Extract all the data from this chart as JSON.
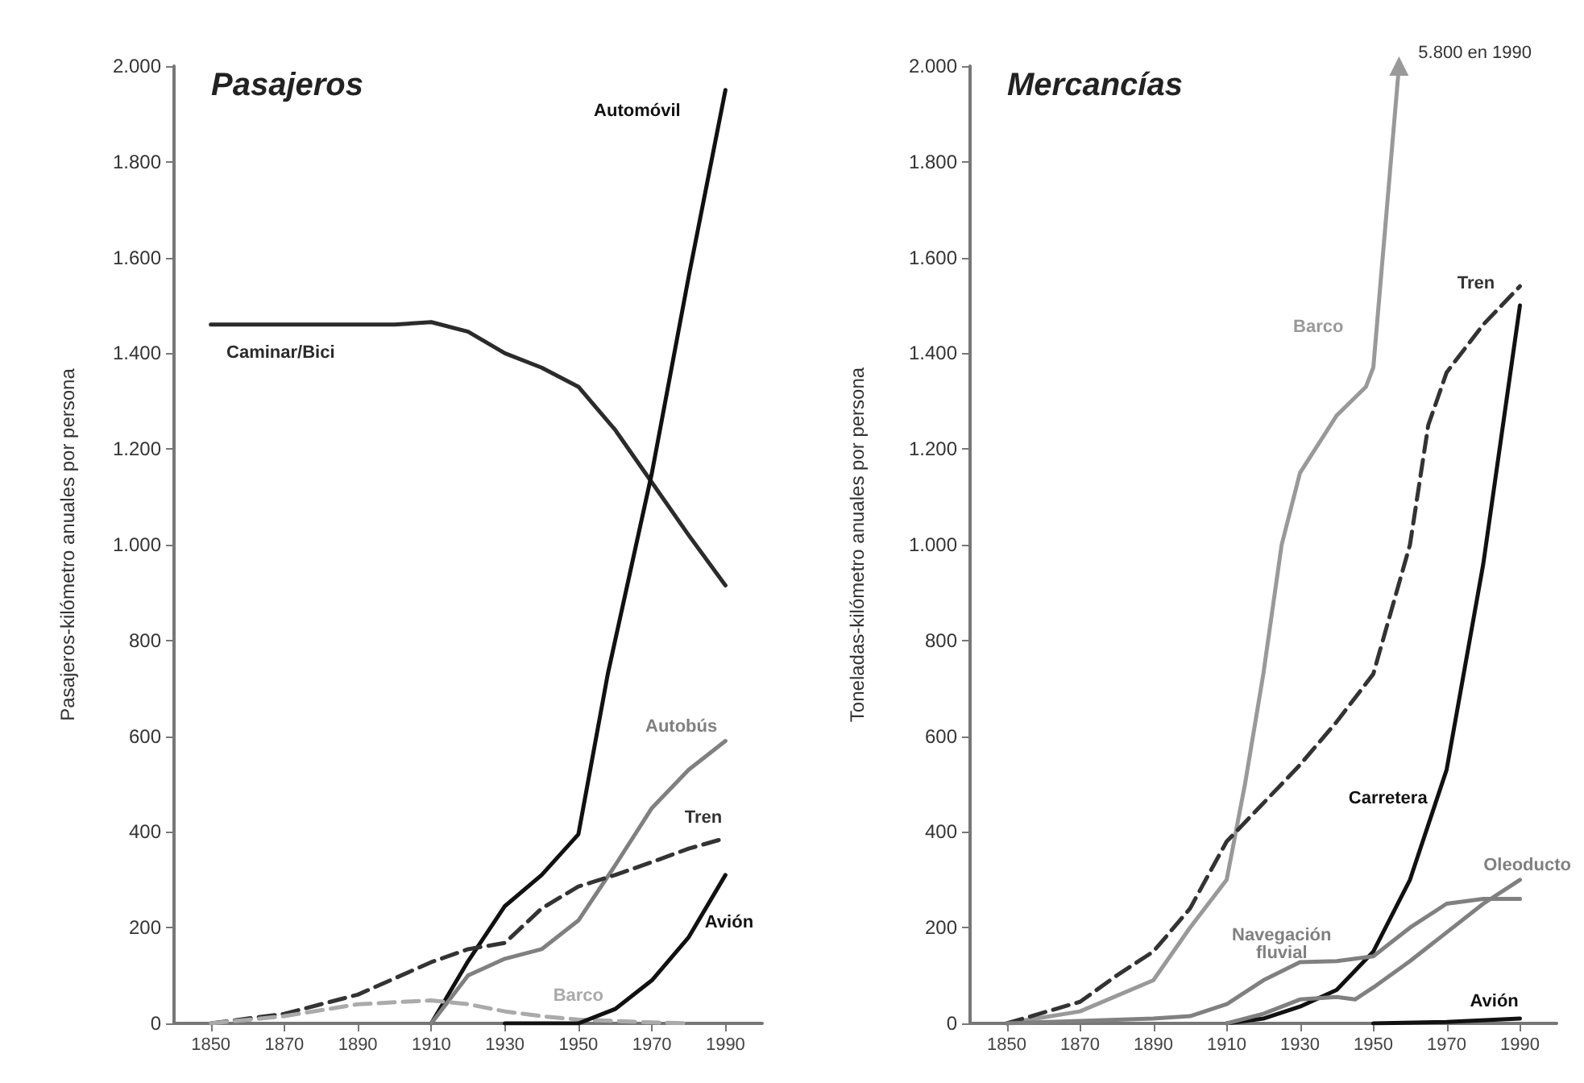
{
  "chart_data": [
    {
      "type": "line",
      "title": "Pasajeros",
      "ylabel": "Pasajeros-kilómetro anuales por persona",
      "xlim": [
        1840,
        2000
      ],
      "xticks": [
        1850,
        1870,
        1890,
        1910,
        1930,
        1950,
        1970,
        1990
      ],
      "ylim": [
        0,
        2000
      ],
      "yticks": [
        {
          "value": 0,
          "label": "0"
        },
        {
          "value": 200,
          "label": "200"
        },
        {
          "value": 400,
          "label": "400"
        },
        {
          "value": 600,
          "label": "600"
        },
        {
          "value": 800,
          "label": "800"
        },
        {
          "value": 1000,
          "label": "1.000"
        },
        {
          "value": 1200,
          "label": "1.200"
        },
        {
          "value": 1400,
          "label": "1.400"
        },
        {
          "value": 1600,
          "label": "1.600"
        },
        {
          "value": 1800,
          "label": "1.800"
        },
        {
          "value": 2000,
          "label": "2.000"
        }
      ],
      "grid": false,
      "marker": "none",
      "series": [
        {
          "name": "Caminar/Bici",
          "color": "#2b2b2b",
          "line_style": "solid",
          "x": [
            1850,
            1900,
            1910,
            1920,
            1930,
            1940,
            1950,
            1960,
            1970,
            1980,
            1990
          ],
          "values": [
            1460,
            1460,
            1465,
            1445,
            1400,
            1370,
            1330,
            1240,
            1130,
            1020,
            915
          ]
        },
        {
          "name": "Automóvil",
          "color": "#111111",
          "line_style": "solid",
          "x": [
            1910,
            1920,
            1930,
            1940,
            1950,
            1958,
            1970,
            1980,
            1990
          ],
          "values": [
            0,
            130,
            245,
            310,
            395,
            730,
            1150,
            1560,
            1950
          ]
        },
        {
          "name": "Autobús",
          "color": "#808080",
          "line_style": "solid",
          "x": [
            1910,
            1920,
            1930,
            1940,
            1950,
            1960,
            1970,
            1980,
            1990
          ],
          "values": [
            0,
            100,
            135,
            155,
            215,
            330,
            450,
            530,
            590
          ]
        },
        {
          "name": "Tren",
          "color": "#333333",
          "line_style": "dashed",
          "x": [
            1850,
            1870,
            1890,
            1910,
            1920,
            1930,
            1940,
            1950,
            1960,
            1970,
            1980,
            1990
          ],
          "values": [
            0,
            20,
            60,
            128,
            155,
            168,
            240,
            286,
            310,
            337,
            365,
            387
          ]
        },
        {
          "name": "Barco",
          "color": "#aaaaaa",
          "line_style": "dashed",
          "x": [
            1850,
            1870,
            1890,
            1910,
            1920,
            1930,
            1940,
            1950,
            1970,
            1980
          ],
          "values": [
            0,
            15,
            40,
            48,
            40,
            25,
            15,
            8,
            2,
            0
          ]
        },
        {
          "name": "Avión",
          "color": "#111111",
          "line_style": "solid",
          "x": [
            1930,
            1950,
            1960,
            1970,
            1980,
            1990
          ],
          "values": [
            0,
            0,
            30,
            90,
            180,
            310
          ]
        }
      ],
      "legend": false
    },
    {
      "type": "line",
      "title": "Mercancías",
      "ylabel": "Toneladas-kilómetro anuales por persona",
      "xlim": [
        1840,
        2000
      ],
      "xticks": [
        1850,
        1870,
        1890,
        1910,
        1930,
        1950,
        1970,
        1990
      ],
      "ylim": [
        0,
        2000
      ],
      "yticks": [
        {
          "value": 0,
          "label": "0"
        },
        {
          "value": 200,
          "label": "200"
        },
        {
          "value": 400,
          "label": "400"
        },
        {
          "value": 600,
          "label": "600"
        },
        {
          "value": 800,
          "label": "800"
        },
        {
          "value": 1000,
          "label": "1.000"
        },
        {
          "value": 1200,
          "label": "1.200"
        },
        {
          "value": 1400,
          "label": "1.400"
        },
        {
          "value": 1600,
          "label": "1.600"
        },
        {
          "value": 1800,
          "label": "1.800"
        },
        {
          "value": 2000,
          "label": "2.000"
        }
      ],
      "grid": false,
      "legend": false,
      "marker": "none",
      "series": [
        {
          "name": "Barco",
          "color": "#999999",
          "line_style": "solid",
          "x": [
            1850,
            1870,
            1890,
            1900,
            1910,
            1915,
            1920,
            1925,
            1930,
            1940,
            1948,
            1950,
            1957
          ],
          "values": [
            0,
            25,
            90,
            200,
            300,
            500,
            730,
            1000,
            1150,
            1270,
            1330,
            1370,
            2000
          ]
        },
        {
          "name": "Tren",
          "color": "#333333",
          "line_style": "dashed",
          "x": [
            1850,
            1870,
            1880,
            1890,
            1900,
            1910,
            1920,
            1930,
            1940,
            1950,
            1960,
            1965,
            1970,
            1980,
            1990
          ],
          "values": [
            0,
            45,
            100,
            150,
            240,
            380,
            460,
            540,
            630,
            730,
            1000,
            1250,
            1360,
            1460,
            1540
          ]
        },
        {
          "name": "Carretera",
          "color": "#111111",
          "line_style": "solid",
          "x": [
            1910,
            1920,
            1930,
            1940,
            1950,
            1960,
            1970,
            1980,
            1990
          ],
          "values": [
            0,
            10,
            35,
            70,
            150,
            300,
            530,
            960,
            1500
          ]
        },
        {
          "name": "Navegación\nfluvial",
          "color": "#808080",
          "line_style": "solid",
          "x": [
            1850,
            1870,
            1890,
            1900,
            1910,
            1920,
            1930,
            1940,
            1950,
            1960,
            1970,
            1980,
            1990
          ],
          "values": [
            0,
            5,
            10,
            15,
            40,
            90,
            128,
            130,
            140,
            200,
            250,
            260,
            260
          ]
        },
        {
          "name": "Oleoducto",
          "color": "#808080",
          "line_style": "solid",
          "x": [
            1910,
            1920,
            1930,
            1940,
            1945,
            1950,
            1960,
            1970,
            1980,
            1990
          ],
          "values": [
            0,
            20,
            50,
            55,
            50,
            75,
            130,
            190,
            250,
            300
          ]
        },
        {
          "name": "Avión",
          "color": "#111111",
          "line_style": "solid",
          "x": [
            1950,
            1970,
            1990
          ],
          "values": [
            0,
            3,
            10
          ]
        }
      ],
      "annotations": [
        "5.800 en 1990"
      ]
    }
  ]
}
